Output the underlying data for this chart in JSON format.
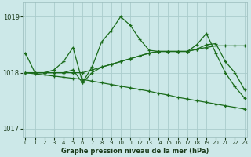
{
  "xlabel": "Graphe pression niveau de la mer (hPa)",
  "background_color": "#cce8e8",
  "grid_color": "#aacccc",
  "line_color": "#1a6b1a",
  "series": [
    {
      "x": [
        0,
        1,
        2,
        3,
        4,
        5,
        6,
        7,
        8,
        9,
        10,
        11,
        12,
        13,
        14,
        15,
        16,
        17,
        18,
        19,
        20,
        21,
        22,
        23
      ],
      "y": [
        1018.35,
        1018.0,
        1018.0,
        1018.05,
        1018.2,
        1018.45,
        1017.83,
        1018.1,
        1018.55,
        1018.75,
        1019.0,
        1018.85,
        1018.6,
        1018.4,
        1018.38,
        1018.38,
        1018.38,
        1018.38,
        1018.5,
        1018.7,
        1018.35,
        1018.0,
        1017.75,
        1017.55
      ]
    },
    {
      "x": [
        0,
        1,
        2,
        3,
        4,
        5,
        6,
        7,
        8,
        9,
        10,
        11,
        12,
        13,
        14,
        15,
        16,
        17,
        18,
        19,
        20,
        21,
        22,
        23
      ],
      "y": [
        1018.0,
        1018.0,
        1018.0,
        1018.0,
        1018.0,
        1018.0,
        1018.0,
        1018.05,
        1018.1,
        1018.15,
        1018.2,
        1018.25,
        1018.3,
        1018.35,
        1018.38,
        1018.38,
        1018.38,
        1018.38,
        1018.42,
        1018.45,
        1018.48,
        1018.48,
        1018.48,
        1018.48
      ]
    },
    {
      "x": [
        0,
        1,
        2,
        3,
        4,
        5,
        6,
        7,
        8,
        9,
        10,
        11,
        12,
        13,
        14,
        15,
        16,
        17,
        18,
        19,
        20,
        21,
        22,
        23
      ],
      "y": [
        1018.0,
        1018.0,
        1018.0,
        1018.0,
        1018.0,
        1018.05,
        1017.82,
        1018.0,
        1018.1,
        1018.15,
        1018.2,
        1018.25,
        1018.3,
        1018.35,
        1018.38,
        1018.38,
        1018.38,
        1018.38,
        1018.42,
        1018.5,
        1018.52,
        1018.2,
        1018.0,
        1017.7
      ]
    },
    {
      "x": [
        0,
        1,
        2,
        3,
        4,
        5,
        6,
        7,
        8,
        9,
        10,
        11,
        12,
        13,
        14,
        15,
        16,
        17,
        18,
        19,
        20,
        21,
        22,
        23
      ],
      "y": [
        1018.0,
        1017.98,
        1017.96,
        1017.94,
        1017.92,
        1017.9,
        1017.88,
        1017.85,
        1017.82,
        1017.79,
        1017.76,
        1017.73,
        1017.7,
        1017.67,
        1017.63,
        1017.6,
        1017.56,
        1017.53,
        1017.5,
        1017.47,
        1017.44,
        1017.41,
        1017.38,
        1017.35
      ]
    }
  ],
  "xlim": [
    -0.3,
    23.3
  ],
  "ylim": [
    1016.85,
    1019.25
  ],
  "yticks": [
    1017,
    1018,
    1019
  ],
  "xticks": [
    0,
    1,
    2,
    3,
    4,
    5,
    6,
    7,
    8,
    9,
    10,
    11,
    12,
    13,
    14,
    15,
    16,
    17,
    18,
    19,
    20,
    21,
    22,
    23
  ]
}
